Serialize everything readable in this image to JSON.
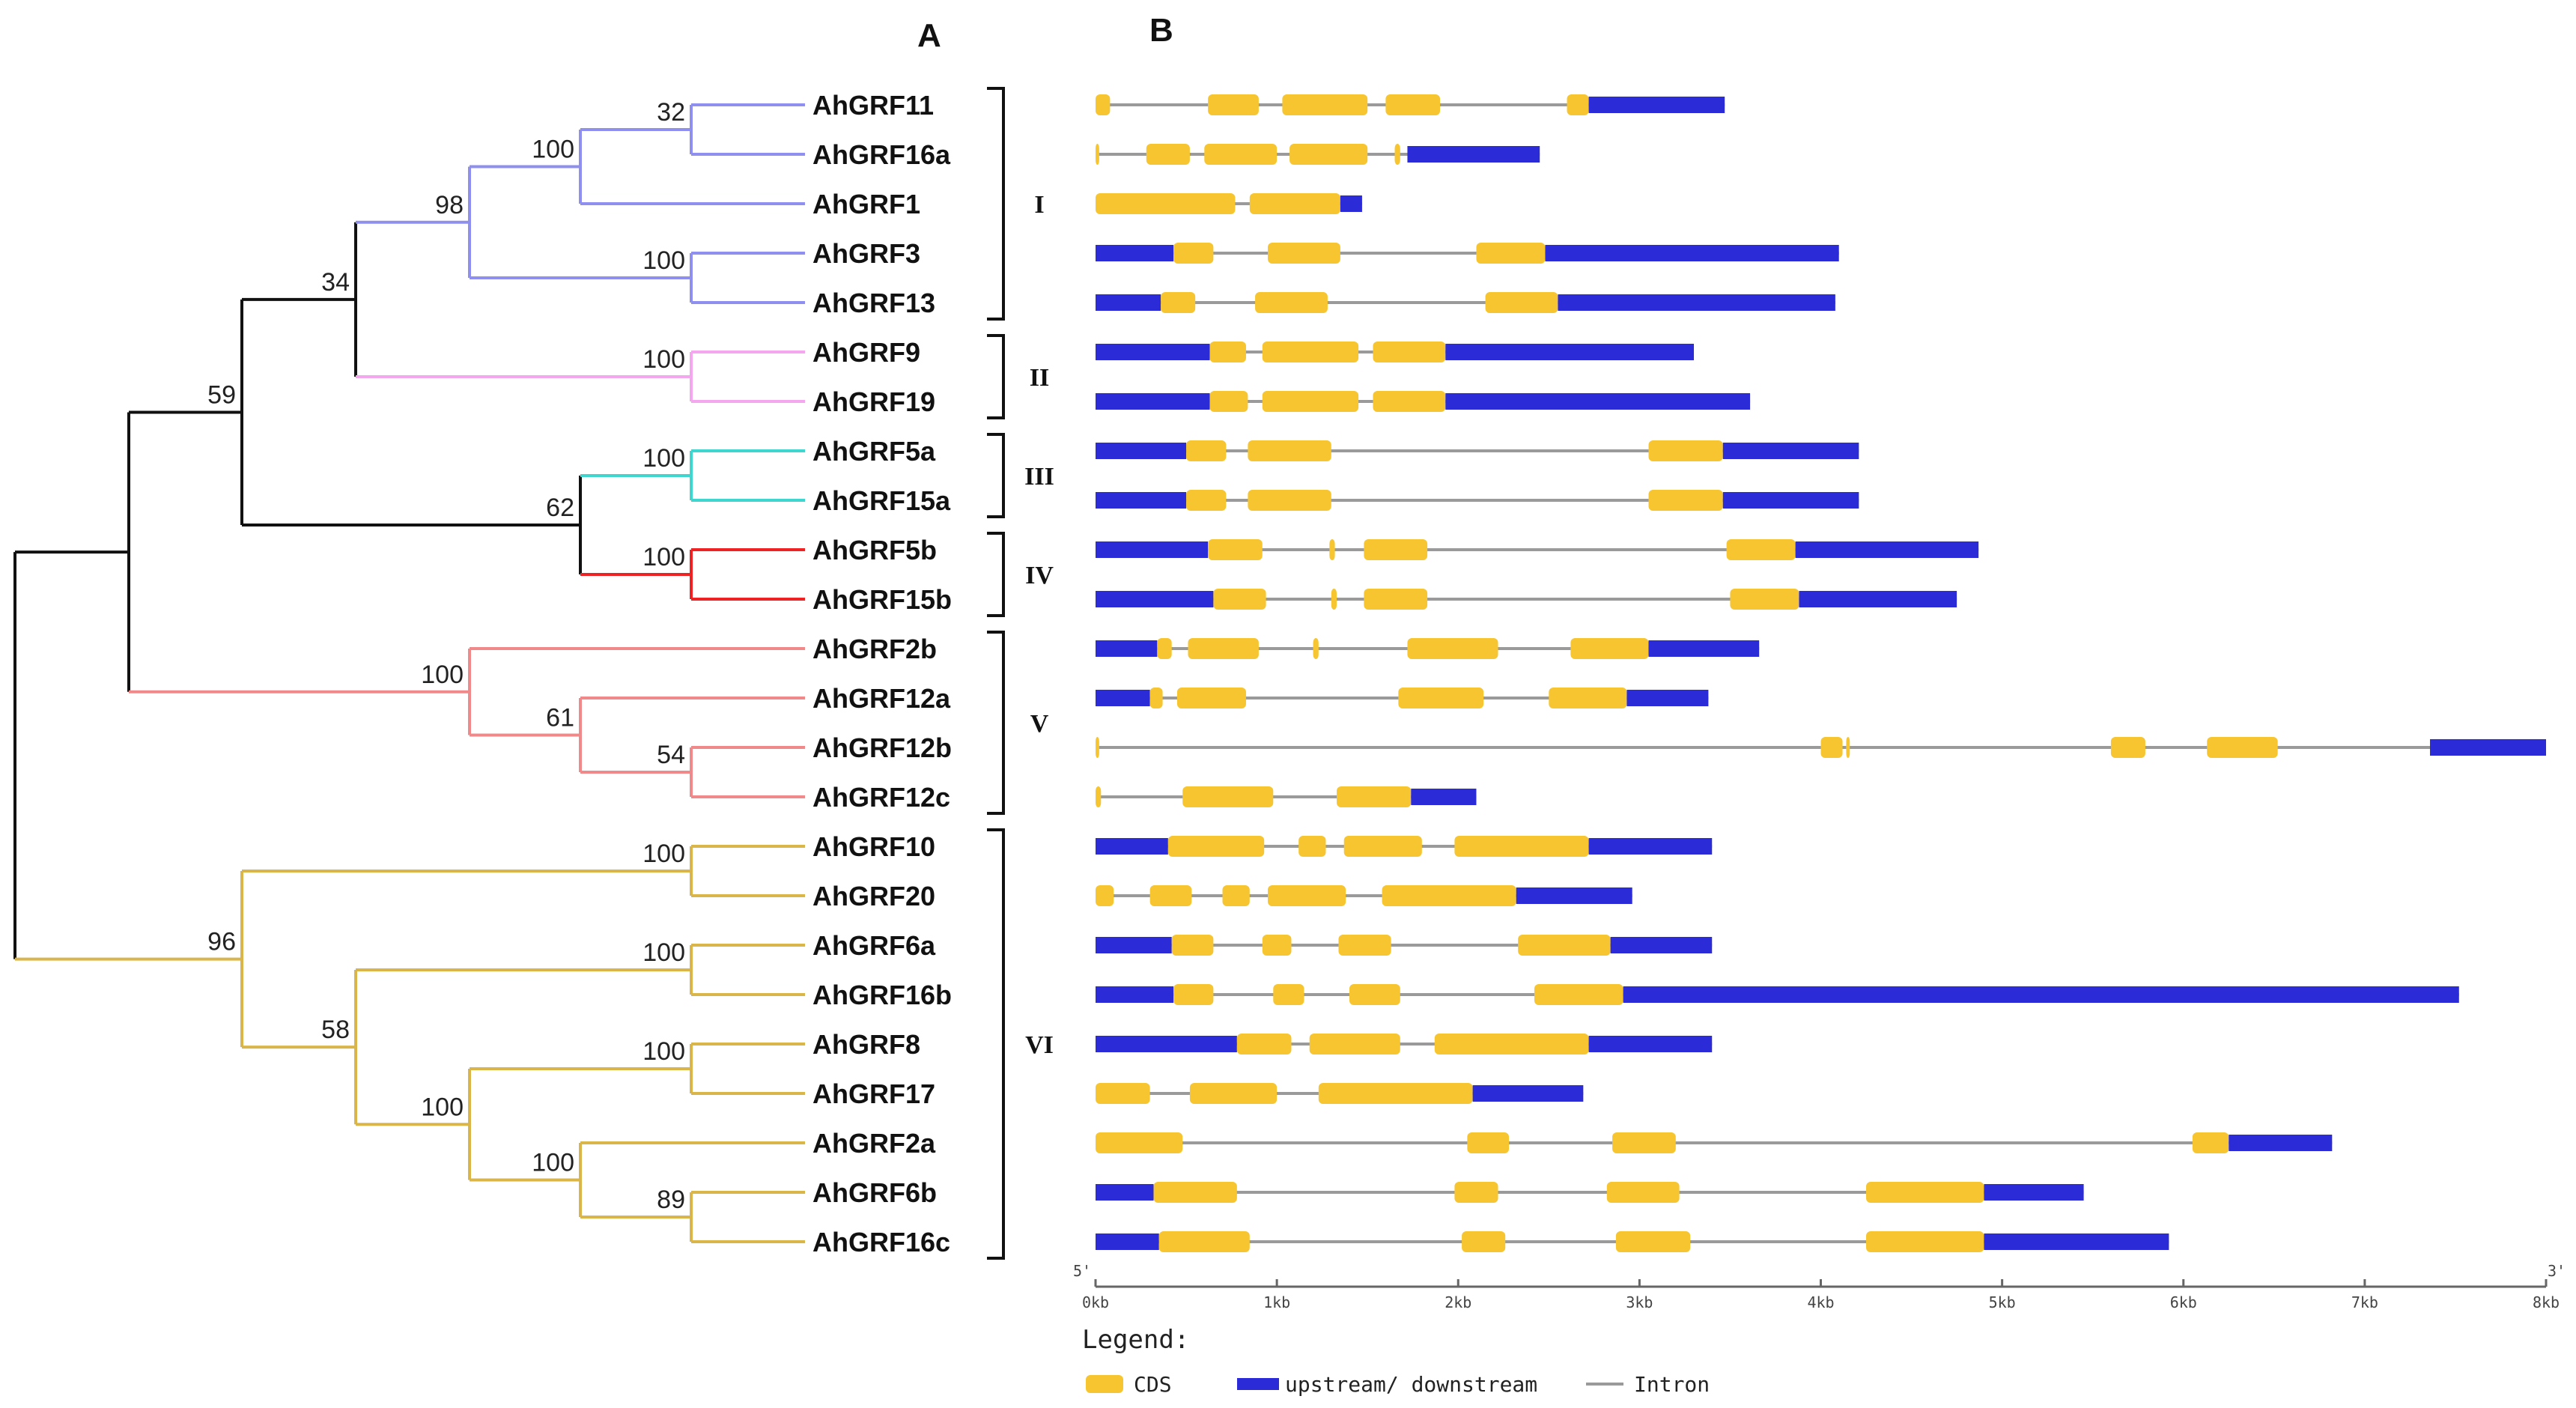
{
  "panels": {
    "a": "A",
    "b": "B"
  },
  "colors": {
    "black": "#111111",
    "blue": "#8f8ff0",
    "pink": "#f4a6ef",
    "cyan": "#3fd6d0",
    "red": "#ee2222",
    "salmon": "#f08a8a",
    "gold": "#d9b54a",
    "cds": "#f6c530",
    "utr": "#2b2bd8",
    "intron": "#9a9a9a"
  },
  "genes": [
    "AhGRF11",
    "AhGRF16a",
    "AhGRF1",
    "AhGRF3",
    "AhGRF13",
    "AhGRF9",
    "AhGRF19",
    "AhGRF5a",
    "AhGRF15a",
    "AhGRF5b",
    "AhGRF15b",
    "AhGRF2b",
    "AhGRF12a",
    "AhGRF12b",
    "AhGRF12c",
    "AhGRF10",
    "AhGRF20",
    "AhGRF6a",
    "AhGRF16b",
    "AhGRF8",
    "AhGRF17",
    "AhGRF2a",
    "AhGRF6b",
    "AhGRF16c"
  ],
  "groups": [
    {
      "label": "I",
      "first": 0,
      "last": 4
    },
    {
      "label": "II",
      "first": 5,
      "last": 6
    },
    {
      "label": "III",
      "first": 7,
      "last": 8
    },
    {
      "label": "IV",
      "first": 9,
      "last": 10
    },
    {
      "label": "V",
      "first": 11,
      "last": 14
    },
    {
      "label": "VI",
      "first": 15,
      "last": 23
    }
  ],
  "tree": {
    "nodes": [
      {
        "id": "n_11_16a",
        "children": [
          "AhGRF11",
          "AhGRF16a"
        ],
        "support": "32",
        "color": "blue"
      },
      {
        "id": "n_I_a",
        "children": [
          "n_11_16a",
          "AhGRF1"
        ],
        "support": "100",
        "color": "blue"
      },
      {
        "id": "n_3_13",
        "children": [
          "AhGRF3",
          "AhGRF13"
        ],
        "support": "100",
        "color": "blue"
      },
      {
        "id": "n_I",
        "children": [
          "n_I_a",
          "n_3_13"
        ],
        "support": "98",
        "color": "blue"
      },
      {
        "id": "n_II",
        "children": [
          "AhGRF9",
          "AhGRF19"
        ],
        "support": "100",
        "color": "pink"
      },
      {
        "id": "n_I_II",
        "children": [
          "n_I",
          "n_II"
        ],
        "support": "34",
        "color": "black"
      },
      {
        "id": "n_III",
        "children": [
          "AhGRF5a",
          "AhGRF15a"
        ],
        "support": "100",
        "color": "cyan"
      },
      {
        "id": "n_IV",
        "children": [
          "AhGRF5b",
          "AhGRF15b"
        ],
        "support": "100",
        "color": "red"
      },
      {
        "id": "n_III_IV",
        "children": [
          "n_III",
          "n_IV"
        ],
        "support": "62",
        "color": "black"
      },
      {
        "id": "n_I_IV",
        "children": [
          "n_I_II",
          "n_III_IV"
        ],
        "support": "59",
        "color": "black"
      },
      {
        "id": "n_12b_12c",
        "children": [
          "AhGRF12b",
          "AhGRF12c"
        ],
        "support": "54",
        "color": "salmon"
      },
      {
        "id": "n_12",
        "children": [
          "AhGRF12a",
          "n_12b_12c"
        ],
        "support": "61",
        "color": "salmon"
      },
      {
        "id": "n_V",
        "children": [
          "AhGRF2b",
          "n_12"
        ],
        "support": "100",
        "color": "salmon"
      },
      {
        "id": "n_I_V",
        "children": [
          "n_I_IV",
          "n_V"
        ],
        "support": "",
        "color": "black"
      },
      {
        "id": "n_10_20",
        "children": [
          "AhGRF10",
          "AhGRF20"
        ],
        "support": "100",
        "color": "gold"
      },
      {
        "id": "n_6a_16b",
        "children": [
          "AhGRF6a",
          "AhGRF16b"
        ],
        "support": "100",
        "color": "gold"
      },
      {
        "id": "n_8_17",
        "children": [
          "AhGRF8",
          "AhGRF17"
        ],
        "support": "100",
        "color": "gold"
      },
      {
        "id": "n_6b_16c",
        "children": [
          "AhGRF6b",
          "AhGRF16c"
        ],
        "support": "89",
        "color": "gold"
      },
      {
        "id": "n_2a_6b",
        "children": [
          "AhGRF2a",
          "n_6b_16c"
        ],
        "support": "100",
        "color": "gold"
      },
      {
        "id": "n_8_2a",
        "children": [
          "n_8_17",
          "n_2a_6b"
        ],
        "support": "100",
        "color": "gold"
      },
      {
        "id": "n_6a_8",
        "children": [
          "n_6a_16b",
          "n_8_2a"
        ],
        "support": "58",
        "color": "gold"
      },
      {
        "id": "n_VI",
        "children": [
          "n_10_20",
          "n_6a_8"
        ],
        "support": "96",
        "color": "gold"
      },
      {
        "id": "root",
        "children": [
          "n_I_V",
          "n_VI"
        ],
        "support": "",
        "color": "black"
      }
    ]
  },
  "structures": [
    {
      "gene": "AhGRF11",
      "segs": [
        [
          "cds",
          0.0,
          0.08
        ],
        [
          "cds",
          0.62,
          0.9
        ],
        [
          "cds",
          1.03,
          1.5
        ],
        [
          "cds",
          1.6,
          1.9
        ],
        [
          "cds",
          2.6,
          2.72
        ],
        [
          "utr",
          2.72,
          3.47
        ]
      ]
    },
    {
      "gene": "AhGRF16a",
      "segs": [
        [
          "cds",
          0.0,
          0.02
        ],
        [
          "cds",
          0.28,
          0.52
        ],
        [
          "cds",
          0.6,
          1.0
        ],
        [
          "cds",
          1.07,
          1.5
        ],
        [
          "cds",
          1.65,
          1.68
        ],
        [
          "utr",
          1.72,
          2.45
        ]
      ]
    },
    {
      "gene": "AhGRF1",
      "segs": [
        [
          "cds",
          0.0,
          0.77
        ],
        [
          "cds",
          0.85,
          1.35
        ],
        [
          "utr",
          1.35,
          1.47
        ]
      ]
    },
    {
      "gene": "AhGRF3",
      "segs": [
        [
          "utr",
          0.0,
          0.43
        ],
        [
          "cds",
          0.43,
          0.65
        ],
        [
          "cds",
          0.95,
          1.35
        ],
        [
          "cds",
          2.1,
          2.48
        ],
        [
          "utr",
          2.48,
          4.1
        ]
      ]
    },
    {
      "gene": "AhGRF13",
      "segs": [
        [
          "utr",
          0.0,
          0.36
        ],
        [
          "cds",
          0.36,
          0.55
        ],
        [
          "cds",
          0.88,
          1.28
        ],
        [
          "cds",
          2.15,
          2.55
        ],
        [
          "utr",
          2.55,
          4.08
        ]
      ]
    },
    {
      "gene": "AhGRF9",
      "segs": [
        [
          "utr",
          0.0,
          0.63
        ],
        [
          "cds",
          0.63,
          0.83
        ],
        [
          "cds",
          0.92,
          1.45
        ],
        [
          "cds",
          1.53,
          1.93
        ],
        [
          "utr",
          1.93,
          3.3
        ]
      ]
    },
    {
      "gene": "AhGRF19",
      "segs": [
        [
          "utr",
          0.0,
          0.63
        ],
        [
          "cds",
          0.63,
          0.84
        ],
        [
          "cds",
          0.92,
          1.45
        ],
        [
          "cds",
          1.53,
          1.93
        ],
        [
          "utr",
          1.93,
          3.61
        ]
      ]
    },
    {
      "gene": "AhGRF5a",
      "segs": [
        [
          "utr",
          0.0,
          0.5
        ],
        [
          "cds",
          0.5,
          0.72
        ],
        [
          "cds",
          0.84,
          1.3
        ],
        [
          "cds",
          3.05,
          3.46
        ],
        [
          "utr",
          3.46,
          4.21
        ]
      ]
    },
    {
      "gene": "AhGRF15a",
      "segs": [
        [
          "utr",
          0.0,
          0.5
        ],
        [
          "cds",
          0.5,
          0.72
        ],
        [
          "cds",
          0.84,
          1.3
        ],
        [
          "cds",
          3.05,
          3.46
        ],
        [
          "utr",
          3.46,
          4.21
        ]
      ]
    },
    {
      "gene": "AhGRF5b",
      "segs": [
        [
          "utr",
          0.0,
          0.62
        ],
        [
          "cds",
          0.62,
          0.92
        ],
        [
          "cds",
          1.29,
          1.32
        ],
        [
          "cds",
          1.48,
          1.83
        ],
        [
          "cds",
          3.48,
          3.86
        ],
        [
          "utr",
          3.86,
          4.87
        ]
      ]
    },
    {
      "gene": "AhGRF15b",
      "segs": [
        [
          "utr",
          0.0,
          0.65
        ],
        [
          "cds",
          0.65,
          0.94
        ],
        [
          "cds",
          1.3,
          1.33
        ],
        [
          "cds",
          1.48,
          1.83
        ],
        [
          "cds",
          3.5,
          3.88
        ],
        [
          "utr",
          3.88,
          4.75
        ]
      ]
    },
    {
      "gene": "AhGRF2b",
      "segs": [
        [
          "utr",
          0.0,
          0.34
        ],
        [
          "cds",
          0.34,
          0.42
        ],
        [
          "cds",
          0.51,
          0.9
        ],
        [
          "cds",
          1.2,
          1.23
        ],
        [
          "cds",
          1.72,
          2.22
        ],
        [
          "cds",
          2.62,
          3.05
        ],
        [
          "utr",
          3.05,
          3.66
        ]
      ]
    },
    {
      "gene": "AhGRF12a",
      "segs": [
        [
          "utr",
          0.0,
          0.3
        ],
        [
          "cds",
          0.3,
          0.37
        ],
        [
          "cds",
          0.45,
          0.83
        ],
        [
          "cds",
          1.67,
          2.14
        ],
        [
          "cds",
          2.5,
          2.93
        ],
        [
          "utr",
          2.93,
          3.38
        ]
      ]
    },
    {
      "gene": "AhGRF12b",
      "segs": [
        [
          "cds",
          0.0,
          0.02
        ],
        [
          "cds",
          4.0,
          4.12
        ],
        [
          "cds",
          4.14,
          4.16
        ],
        [
          "cds",
          5.6,
          5.79
        ],
        [
          "cds",
          6.13,
          6.52
        ],
        [
          "utr",
          7.36,
          8.0
        ]
      ]
    },
    {
      "gene": "AhGRF12c",
      "segs": [
        [
          "cds",
          0.0,
          0.03
        ],
        [
          "cds",
          0.48,
          0.98
        ],
        [
          "cds",
          1.33,
          1.74
        ],
        [
          "utr",
          1.74,
          2.1
        ]
      ]
    },
    {
      "gene": "AhGRF10",
      "segs": [
        [
          "utr",
          0.0,
          0.4
        ],
        [
          "cds",
          0.4,
          0.93
        ],
        [
          "cds",
          1.12,
          1.27
        ],
        [
          "cds",
          1.37,
          1.8
        ],
        [
          "cds",
          1.98,
          2.72
        ],
        [
          "utr",
          2.72,
          3.4
        ]
      ]
    },
    {
      "gene": "AhGRF20",
      "segs": [
        [
          "cds",
          0.0,
          0.1
        ],
        [
          "cds",
          0.3,
          0.53
        ],
        [
          "cds",
          0.7,
          0.85
        ],
        [
          "cds",
          0.95,
          1.38
        ],
        [
          "cds",
          1.58,
          2.32
        ],
        [
          "utr",
          2.32,
          2.96
        ]
      ]
    },
    {
      "gene": "AhGRF6a",
      "segs": [
        [
          "utr",
          0.0,
          0.42
        ],
        [
          "cds",
          0.42,
          0.65
        ],
        [
          "cds",
          0.92,
          1.08
        ],
        [
          "cds",
          1.34,
          1.63
        ],
        [
          "cds",
          2.33,
          2.84
        ],
        [
          "utr",
          2.84,
          3.4
        ]
      ]
    },
    {
      "gene": "AhGRF16b",
      "segs": [
        [
          "utr",
          0.0,
          0.43
        ],
        [
          "cds",
          0.43,
          0.65
        ],
        [
          "cds",
          0.98,
          1.15
        ],
        [
          "cds",
          1.4,
          1.68
        ],
        [
          "cds",
          2.42,
          2.91
        ],
        [
          "utr",
          2.91,
          7.52
        ]
      ]
    },
    {
      "gene": "AhGRF8",
      "segs": [
        [
          "utr",
          0.0,
          0.78
        ],
        [
          "cds",
          0.78,
          1.08
        ],
        [
          "cds",
          1.18,
          1.68
        ],
        [
          "cds",
          1.87,
          2.72
        ],
        [
          "utr",
          2.72,
          3.4
        ]
      ]
    },
    {
      "gene": "AhGRF17",
      "segs": [
        [
          "cds",
          0.0,
          0.3
        ],
        [
          "cds",
          0.52,
          1.0
        ],
        [
          "cds",
          1.23,
          2.08
        ],
        [
          "utr",
          2.08,
          2.69
        ]
      ]
    },
    {
      "gene": "AhGRF2a",
      "segs": [
        [
          "cds",
          0.0,
          0.48
        ],
        [
          "cds",
          2.05,
          2.28
        ],
        [
          "cds",
          2.85,
          3.2
        ],
        [
          "cds",
          6.05,
          6.25
        ],
        [
          "utr",
          6.25,
          6.82
        ]
      ]
    },
    {
      "gene": "AhGRF6b",
      "segs": [
        [
          "utr",
          0.0,
          0.32
        ],
        [
          "cds",
          0.32,
          0.78
        ],
        [
          "cds",
          1.98,
          2.22
        ],
        [
          "cds",
          2.82,
          3.22
        ],
        [
          "cds",
          4.25,
          4.9
        ],
        [
          "utr",
          4.9,
          5.45
        ]
      ]
    },
    {
      "gene": "AhGRF16c",
      "segs": [
        [
          "utr",
          0.0,
          0.35
        ],
        [
          "cds",
          0.35,
          0.85
        ],
        [
          "cds",
          2.02,
          2.26
        ],
        [
          "cds",
          2.87,
          3.28
        ],
        [
          "cds",
          4.25,
          4.9
        ],
        [
          "utr",
          4.9,
          5.92
        ]
      ]
    }
  ],
  "axis": {
    "ticks": [
      "0kb",
      "1kb",
      "2kb",
      "3kb",
      "4kb",
      "5kb",
      "6kb",
      "7kb",
      "8kb"
    ],
    "max_kb": 8,
    "left_label": "5'",
    "right_label": "3'"
  },
  "legend": {
    "title": "Legend:",
    "items": [
      {
        "type": "cds",
        "label": "CDS"
      },
      {
        "type": "utr",
        "label": "upstream/ downstream"
      },
      {
        "type": "intron",
        "label": "Intron"
      }
    ]
  }
}
